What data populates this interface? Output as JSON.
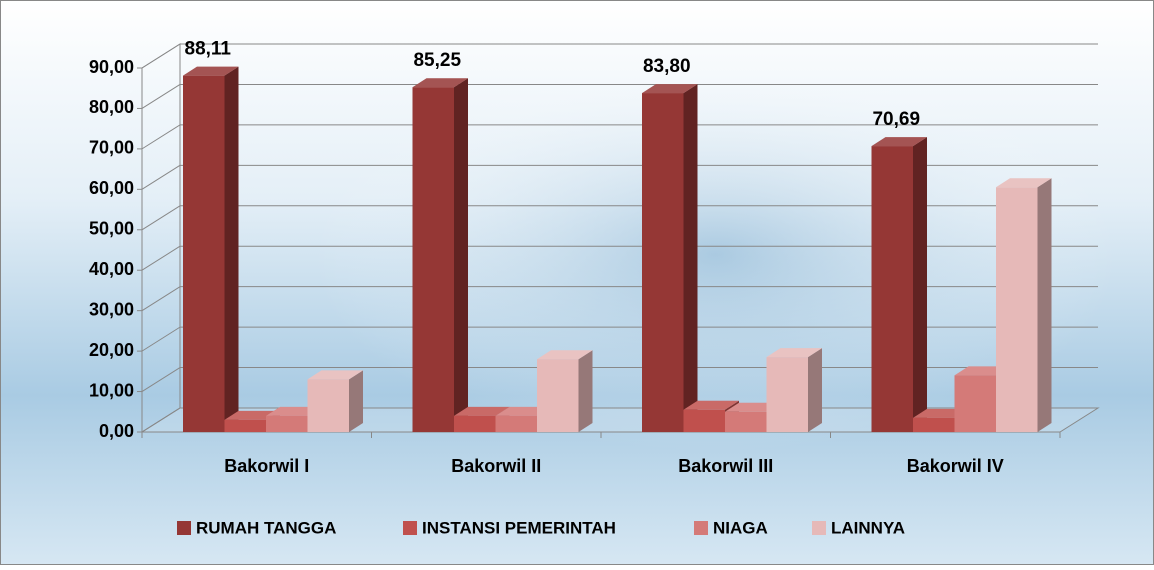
{
  "chart_data": {
    "type": "bar3d",
    "categories": [
      "Bakorwil I",
      "Bakorwil II",
      "Bakorwil III",
      "Bakorwil IV"
    ],
    "series": [
      {
        "name": "RUMAH TANGGA",
        "color": "#953735",
        "values": [
          88.11,
          85.25,
          83.8,
          70.69
        ],
        "value_labels": [
          "88,11",
          "85,25",
          "83,80",
          "70,69"
        ]
      },
      {
        "name": "INSTANSI PEMERINTAH",
        "color": "#c0504d",
        "values": [
          3,
          4,
          5.5,
          3.5
        ]
      },
      {
        "name": "NIAGA",
        "color": "#d47a78",
        "values": [
          4,
          4,
          5,
          14
        ]
      },
      {
        "name": "LAINNYA",
        "color": "#e6b9b8",
        "values": [
          13,
          18,
          18.5,
          60.5
        ]
      }
    ],
    "ylim": [
      0,
      90
    ],
    "yticks": [
      {
        "value": 0,
        "label": "0,00"
      },
      {
        "value": 10,
        "label": "10,00"
      },
      {
        "value": 20,
        "label": "20,00"
      },
      {
        "value": 30,
        "label": "30,00"
      },
      {
        "value": 40,
        "label": "40,00"
      },
      {
        "value": 50,
        "label": "50,00"
      },
      {
        "value": 60,
        "label": "60,00"
      },
      {
        "value": 70,
        "label": "70,00"
      },
      {
        "value": 80,
        "label": "80,00"
      },
      {
        "value": 90,
        "label": "90,00"
      }
    ],
    "grid": true,
    "legend": "bottom"
  }
}
